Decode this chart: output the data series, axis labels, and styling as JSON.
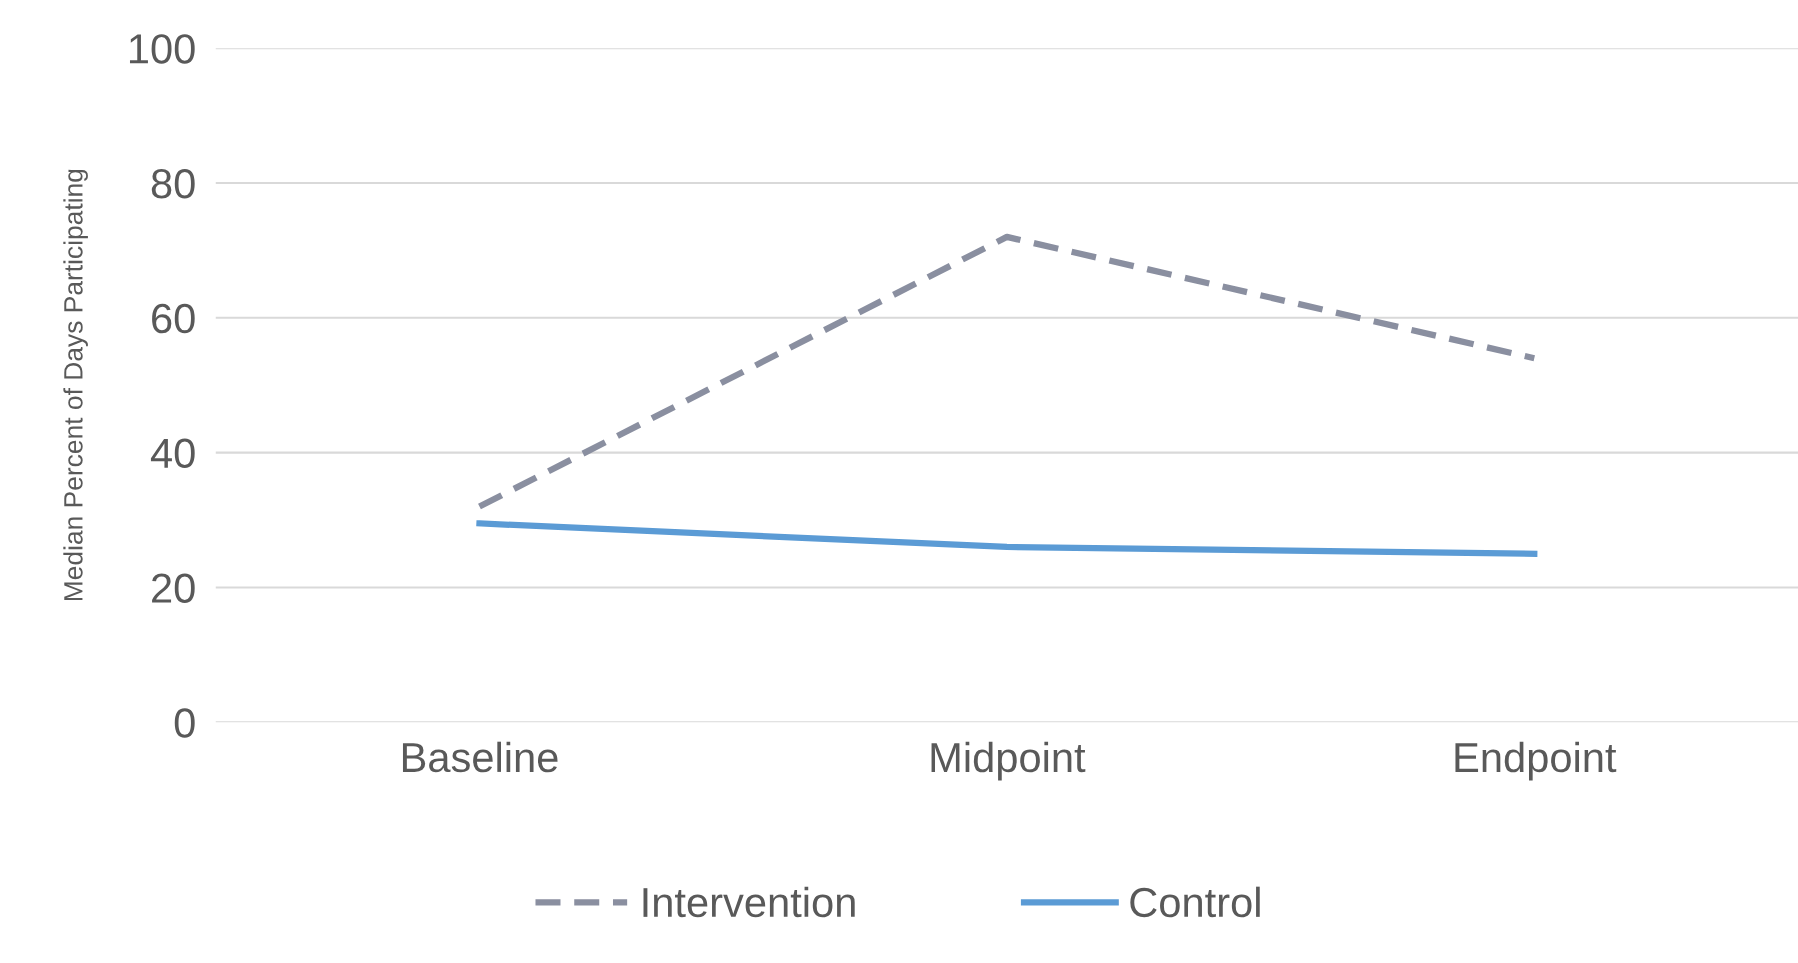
{
  "chart_data": {
    "type": "line",
    "ylabel": "Median Percent of Days Participating",
    "categories": [
      "Baseline",
      "Midpoint",
      "Endpoint"
    ],
    "series": [
      {
        "name": "Intervention",
        "color": "#8a8fa0",
        "values": [
          32,
          72,
          54
        ],
        "line_style": "dashed"
      },
      {
        "name": "Control",
        "color": "#5b9bd5",
        "values": [
          29.5,
          26,
          25
        ],
        "line_style": "solid"
      }
    ],
    "ylim": [
      0,
      100
    ],
    "yticks": [
      0,
      20,
      40,
      60,
      80,
      100
    ],
    "grid": "y",
    "legend": "bottom",
    "marker": "none"
  }
}
